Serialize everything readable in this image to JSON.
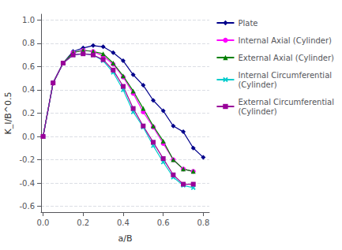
{
  "chart_data": {
    "type": "line",
    "xlabel": "a/B",
    "ylabel": "K_I/B^0.5",
    "xlim": [
      -0.01,
      0.83
    ],
    "ylim": [
      -0.65,
      1.05
    ],
    "xticks": [
      {
        "value": 0,
        "label": "0.0"
      },
      0.2,
      0.4,
      0.6,
      0.8
    ],
    "yticks": [
      -0.6,
      -0.4,
      -0.2,
      {
        "value": 0.0,
        "label": "0.0"
      },
      0.2,
      0.4,
      0.6,
      0.8,
      {
        "value": 1.0,
        "label": "1.0"
      }
    ],
    "grid": true,
    "legend": "right",
    "series": [
      {
        "name": "Plate",
        "color": "#00008B",
        "marker": "diamond",
        "x": [
          0.0,
          0.05,
          0.1,
          0.15,
          0.2,
          0.25,
          0.3,
          0.35,
          0.4,
          0.45,
          0.5,
          0.55,
          0.6,
          0.65,
          0.7,
          0.75,
          0.8
        ],
        "values": [
          0.0,
          0.46,
          0.63,
          0.73,
          0.76,
          0.78,
          0.77,
          0.72,
          0.65,
          0.53,
          0.44,
          0.31,
          0.22,
          0.09,
          0.04,
          -0.1,
          -0.18
        ]
      },
      {
        "name": "Internal Axial (Cylinder)",
        "color": "#FF00FF",
        "marker": "circle",
        "x": [
          0.0,
          0.05,
          0.1,
          0.15,
          0.2,
          0.25,
          0.3,
          0.35,
          0.4,
          0.45,
          0.5,
          0.55,
          0.6,
          0.65,
          0.7,
          0.75
        ],
        "values": [
          0.0,
          0.46,
          0.63,
          0.72,
          0.74,
          0.73,
          0.69,
          0.62,
          0.51,
          0.37,
          0.21,
          0.08,
          -0.06,
          -0.2,
          -0.28,
          -0.3
        ]
      },
      {
        "name": "External Axial (Cylinder)",
        "color": "#008000",
        "marker": "triangle",
        "x": [
          0.0,
          0.05,
          0.1,
          0.15,
          0.2,
          0.25,
          0.3,
          0.35,
          0.4,
          0.45,
          0.5,
          0.55,
          0.6,
          0.65,
          0.7,
          0.75
        ],
        "values": [
          0.0,
          0.46,
          0.63,
          0.72,
          0.74,
          0.73,
          0.71,
          0.63,
          0.52,
          0.39,
          0.24,
          0.09,
          -0.04,
          -0.2,
          -0.28,
          -0.3
        ]
      },
      {
        "name": "Internal Circumferential\n(Cylinder)",
        "color": "#00CCCC",
        "marker": "x",
        "x": [
          0.0,
          0.05,
          0.1,
          0.15,
          0.2,
          0.25,
          0.3,
          0.35,
          0.4,
          0.45,
          0.5,
          0.55,
          0.6,
          0.65,
          0.7,
          0.75
        ],
        "values": [
          0.0,
          0.46,
          0.63,
          0.7,
          0.71,
          0.7,
          0.65,
          0.55,
          0.4,
          0.21,
          0.08,
          -0.08,
          -0.22,
          -0.35,
          -0.42,
          -0.44
        ]
      },
      {
        "name": "External Circumferential\n(Cylinder)",
        "color": "#990099",
        "marker": "square",
        "x": [
          0.0,
          0.05,
          0.1,
          0.15,
          0.2,
          0.25,
          0.3,
          0.35,
          0.4,
          0.45,
          0.5,
          0.55,
          0.6,
          0.65,
          0.7,
          0.75
        ],
        "values": [
          0.0,
          0.46,
          0.63,
          0.7,
          0.71,
          0.7,
          0.66,
          0.57,
          0.43,
          0.24,
          0.09,
          -0.05,
          -0.19,
          -0.33,
          -0.41,
          -0.41
        ]
      }
    ]
  }
}
